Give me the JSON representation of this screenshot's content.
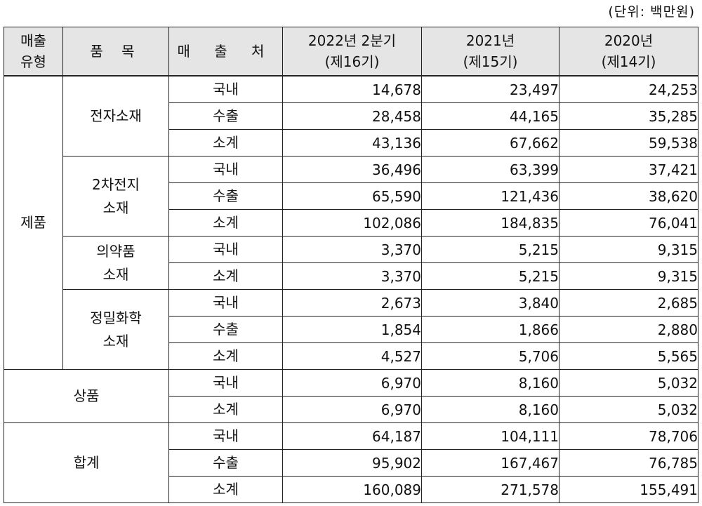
{
  "unit_note": "(단위: 백만원)",
  "headers": {
    "type": [
      "매출",
      "유형"
    ],
    "item": "품 목",
    "dest": "매 출 처",
    "y2022": [
      "2022년 2분기",
      "(제16기)"
    ],
    "y2021": [
      "2021년",
      "(제15기)"
    ],
    "y2020": [
      "2020년",
      "(제14기)"
    ]
  },
  "groups": {
    "product": "제품",
    "merch": "상품",
    "total": "합계"
  },
  "items": {
    "electronic": "전자소재",
    "battery": [
      "2차전지",
      "소재"
    ],
    "pharma": [
      "의약품",
      "소재"
    ],
    "fine": [
      "정밀화학",
      "소재"
    ]
  },
  "rows": [
    {
      "dest": "국내",
      "v2022": "14,678",
      "v2021": "23,497",
      "v2020": "24,253"
    },
    {
      "dest": "수출",
      "v2022": "28,458",
      "v2021": "44,165",
      "v2020": "35,285"
    },
    {
      "dest": "소계",
      "v2022": "43,136",
      "v2021": "67,662",
      "v2020": "59,538"
    },
    {
      "dest": "국내",
      "v2022": "36,496",
      "v2021": "63,399",
      "v2020": "37,421"
    },
    {
      "dest": "수출",
      "v2022": "65,590",
      "v2021": "121,436",
      "v2020": "38,620"
    },
    {
      "dest": "소계",
      "v2022": "102,086",
      "v2021": "184,835",
      "v2020": "76,041"
    },
    {
      "dest": "국내",
      "v2022": "3,370",
      "v2021": "5,215",
      "v2020": "9,315"
    },
    {
      "dest": "소계",
      "v2022": "3,370",
      "v2021": "5,215",
      "v2020": "9,315"
    },
    {
      "dest": "국내",
      "v2022": "2,673",
      "v2021": "3,840",
      "v2020": "2,685"
    },
    {
      "dest": "수출",
      "v2022": "1,854",
      "v2021": "1,866",
      "v2020": "2,880"
    },
    {
      "dest": "소계",
      "v2022": "4,527",
      "v2021": "5,706",
      "v2020": "5,565"
    },
    {
      "dest": "국내",
      "v2022": "6,970",
      "v2021": "8,160",
      "v2020": "5,032"
    },
    {
      "dest": "소계",
      "v2022": "6,970",
      "v2021": "8,160",
      "v2020": "5,032"
    },
    {
      "dest": "국내",
      "v2022": "64,187",
      "v2021": "104,111",
      "v2020": "78,706"
    },
    {
      "dest": "수출",
      "v2022": "95,902",
      "v2021": "167,467",
      "v2020": "76,785"
    },
    {
      "dest": "소계",
      "v2022": "160,089",
      "v2021": "271,578",
      "v2020": "155,491"
    }
  ]
}
